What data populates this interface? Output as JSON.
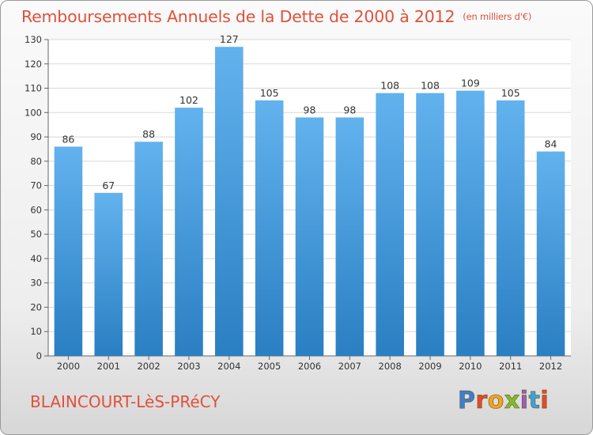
{
  "title": "Remboursements Annuels de la Dette de 2000 à 2012",
  "unit_note": "(en milliers d'€)",
  "city": "BLAINCOURT-LèS-PRéCY",
  "logo": {
    "text": "Proxiti",
    "letters": [
      "P",
      "r",
      "o",
      "x",
      "i",
      "t",
      "i"
    ]
  },
  "colors": {
    "bar": "#3d8fd6",
    "bar_light": "#5fb0ec",
    "title": "#e0513b"
  },
  "chart_data": {
    "type": "bar",
    "title": "Remboursements Annuels de la Dette de 2000 à 2012",
    "xlabel": "",
    "ylabel": "",
    "categories": [
      "2000",
      "2001",
      "2002",
      "2003",
      "2004",
      "2005",
      "2006",
      "2007",
      "2008",
      "2009",
      "2010",
      "2011",
      "2012"
    ],
    "values": [
      86,
      67,
      88,
      102,
      127,
      105,
      98,
      98,
      108,
      108,
      109,
      105,
      84
    ],
    "ylim": [
      0,
      130
    ],
    "yticks": [
      0,
      10,
      20,
      30,
      40,
      50,
      60,
      70,
      80,
      90,
      100,
      110,
      120,
      130
    ],
    "grid": true,
    "legend": "none"
  }
}
